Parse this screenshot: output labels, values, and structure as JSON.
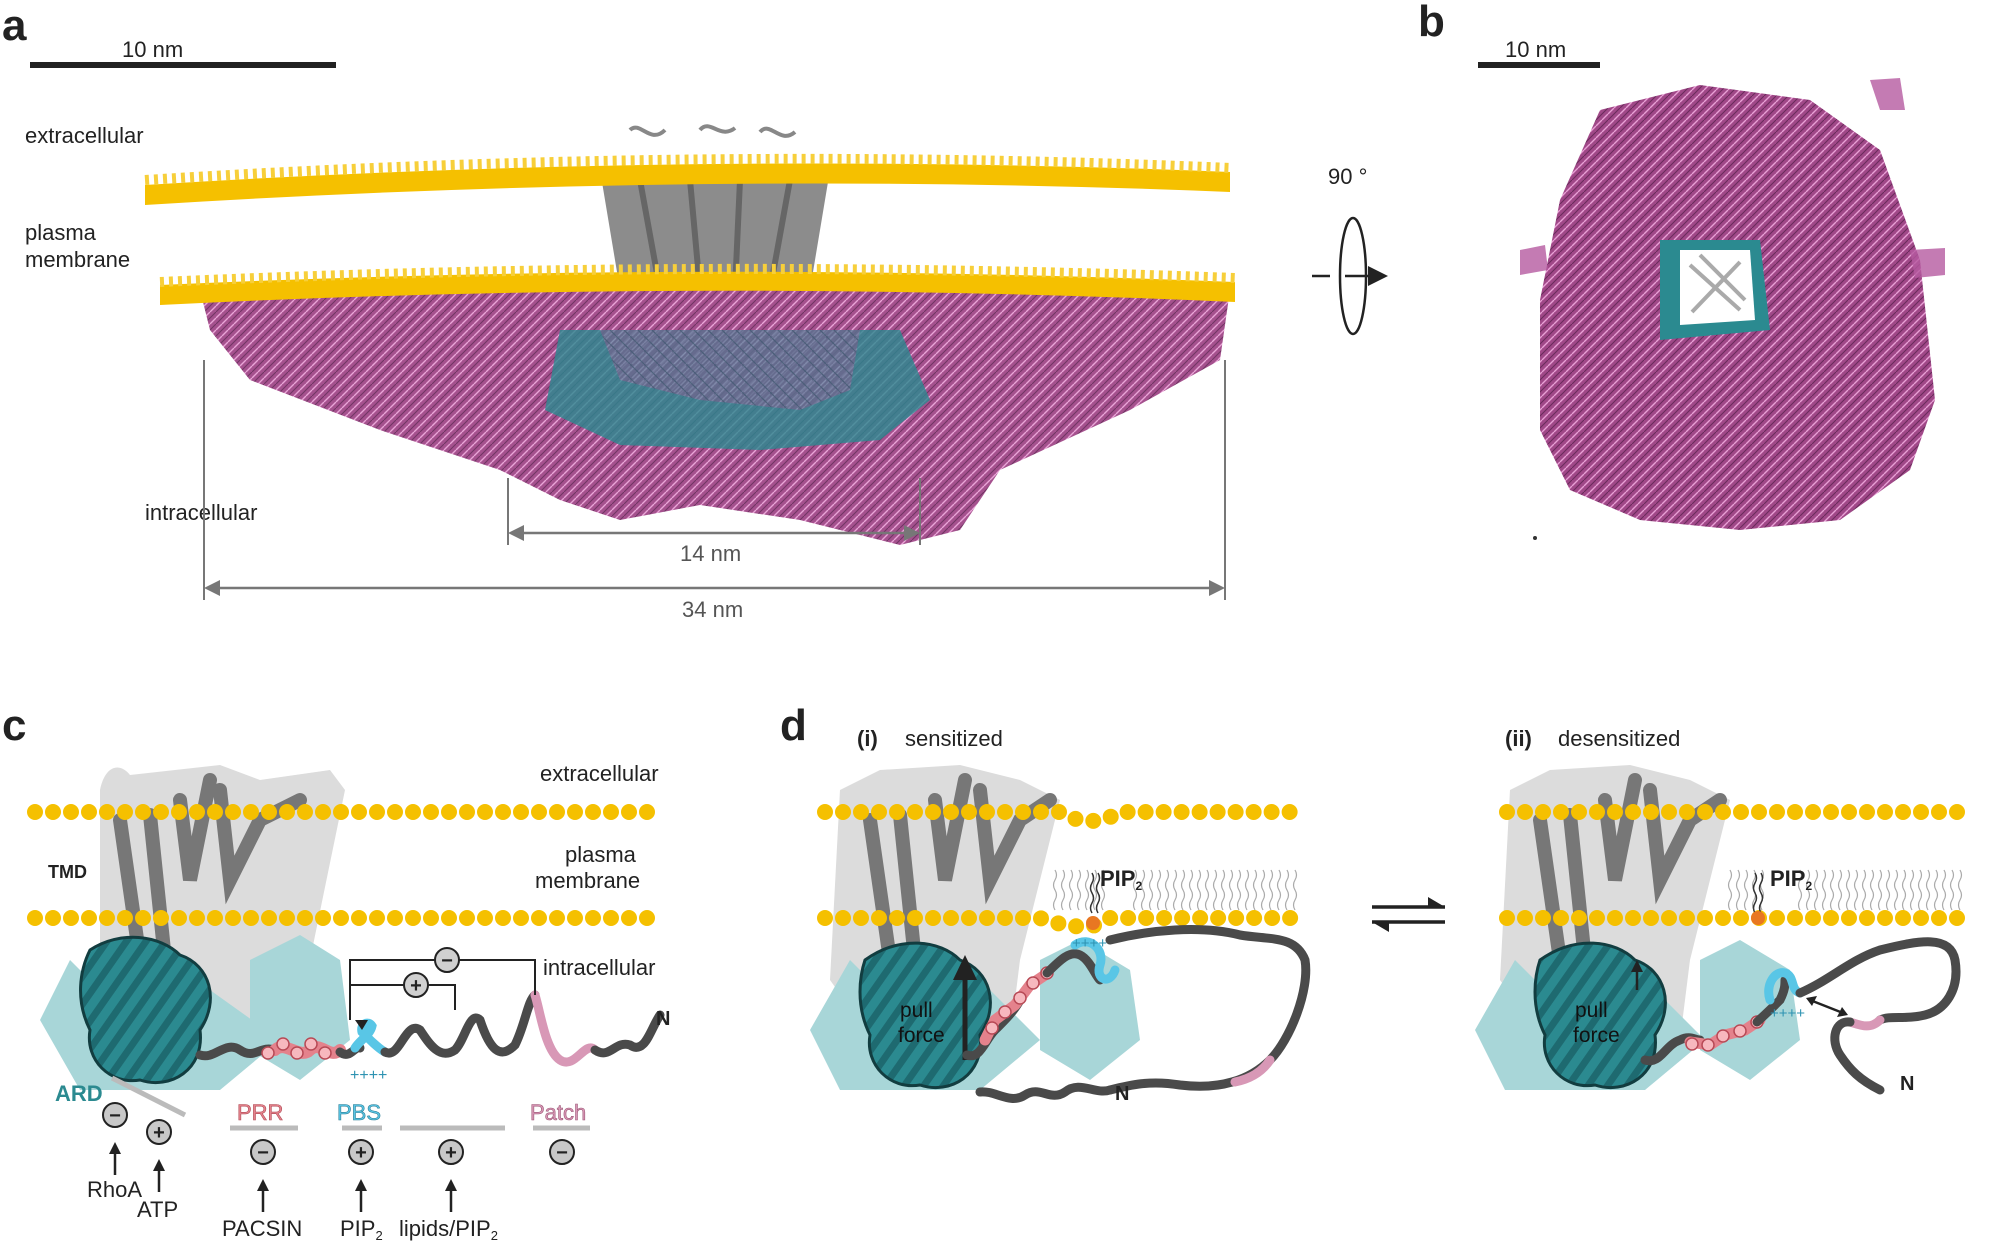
{
  "panels": {
    "a": {
      "letter": "a",
      "scale_bar": "10 nm",
      "labels": {
        "extracellular": "extracellular",
        "plasma_line1": "plasma",
        "plasma_line2": "membrane",
        "intracellular": "intracellular"
      },
      "dim_inner": "14 nm",
      "dim_outer": "34 nm",
      "rotation": "90 °"
    },
    "b": {
      "letter": "b",
      "scale_bar": "10 nm"
    },
    "c": {
      "letter": "c",
      "labels": {
        "extracellular": "extracellular",
        "plasma_line1": "plasma",
        "plasma_line2": "membrane",
        "intracellular": "intracellular",
        "tmd": "TMD",
        "n_term": "N"
      },
      "domains": {
        "ard": "ARD",
        "prr": "PRR",
        "pbs": "PBS",
        "patch": "Patch"
      },
      "effectors": {
        "rhoa": "RhoA",
        "atp": "ATP",
        "pacsin": "PACSIN",
        "pip2_base": "PIP",
        "pip2_sub": "2",
        "lipids_base": "lipids/PIP",
        "lipids_sub": "2"
      },
      "signs": {
        "plus": "+",
        "minus": "−",
        "charges": "++++"
      }
    },
    "d": {
      "letter": "d",
      "state1_num": "(i)",
      "state1": "sensitized",
      "state2_num": "(ii)",
      "state2": "desensitized",
      "pip2_base": "PIP",
      "pip2_sub": "2",
      "pull_line1": "pull",
      "pull_line2": "force",
      "n_term": "N",
      "charges": "++++"
    }
  },
  "colors": {
    "lipid_head": "#F5C000",
    "ankyrin": "#2B8A90",
    "ankyrin_shadow": "#A8D6D8",
    "tail_purple": "#C45AA0",
    "prr": "#F0A0A8",
    "pbs": "#59C6E6",
    "patch": "#D898B6",
    "chain": "#4a4a4a",
    "tm_shadow": "#DCDCDC"
  }
}
